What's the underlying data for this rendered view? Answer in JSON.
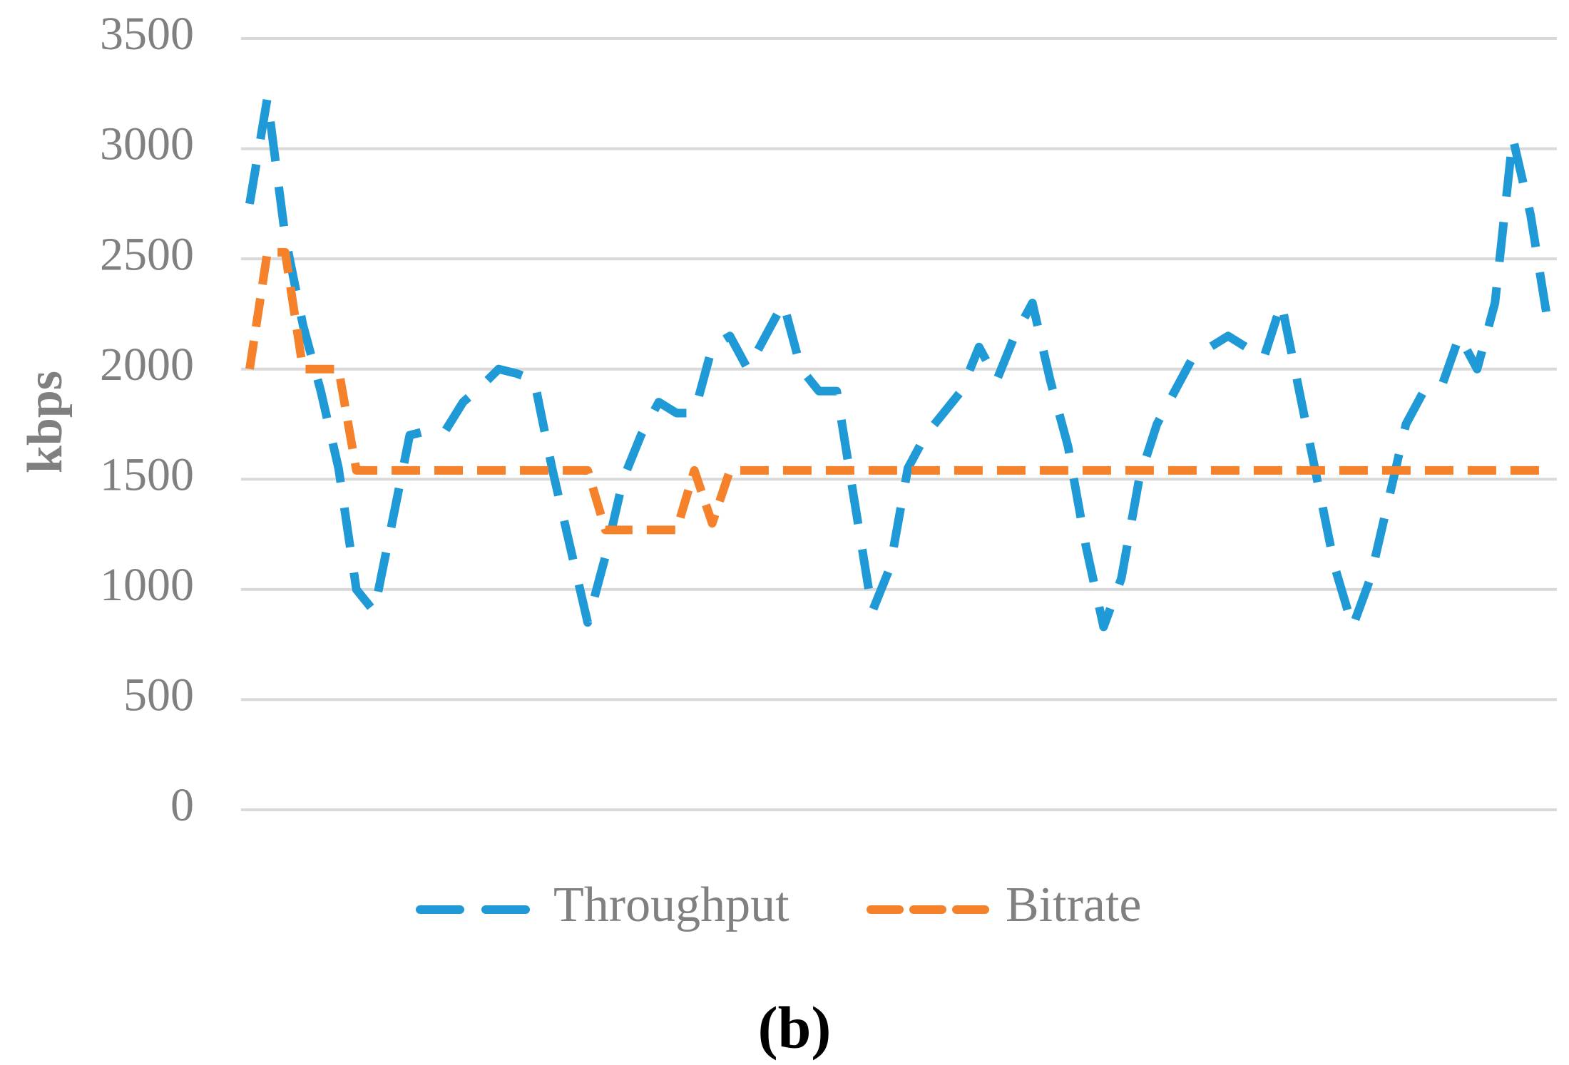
{
  "chart_data": {
    "type": "line",
    "caption": "(b)",
    "y_label": "kbps",
    "categories": [
      null,
      null,
      null,
      null,
      null,
      null,
      null,
      null,
      null,
      null,
      null,
      null,
      null,
      null,
      null,
      null,
      null,
      null,
      null,
      null,
      null,
      null,
      null,
      null,
      null,
      null,
      null,
      null,
      null,
      null,
      null,
      null,
      null,
      null,
      null,
      null,
      null,
      null,
      null,
      null,
      null,
      null,
      null,
      null,
      null,
      null,
      null,
      null,
      null,
      null,
      null,
      null,
      null,
      null,
      null,
      null,
      null,
      null,
      null,
      null,
      null,
      null,
      null,
      null,
      null,
      null,
      null,
      null,
      null,
      null,
      null,
      null,
      null,
      null
    ],
    "series": [
      {
        "name": "Throughput",
        "color": "#1f9ad6",
        "dash": "long",
        "values": [
          2750,
          3230,
          2600,
          2200,
          1900,
          1550,
          1000,
          900,
          1300,
          1700,
          1720,
          1720,
          1850,
          1920,
          2000,
          1980,
          1950,
          1550,
          1200,
          850,
          1150,
          1500,
          1700,
          1850,
          1800,
          1800,
          2100,
          2150,
          2000,
          2150,
          2300,
          2000,
          1900,
          1900,
          1400,
          900,
          1100,
          1550,
          1700,
          1800,
          1900,
          2100,
          1950,
          2150,
          2300,
          1950,
          1650,
          1200,
          830,
          1050,
          1500,
          1750,
          1900,
          2050,
          2100,
          2150,
          2100,
          2050,
          2300,
          1900,
          1500,
          1100,
          830,
          1050,
          1400,
          1750,
          1900,
          1920,
          2150,
          2000,
          2300,
          3050,
          2700,
          2200
        ]
      },
      {
        "name": "Bitrate",
        "color": "#f5812a",
        "dash": "short",
        "values": [
          2000,
          2530,
          2530,
          2000,
          2000,
          2000,
          1540,
          1540,
          1540,
          1540,
          1540,
          1540,
          1540,
          1540,
          1540,
          1540,
          1540,
          1540,
          1540,
          1540,
          1270,
          1270,
          1270,
          1270,
          1270,
          1540,
          1300,
          1540,
          1540,
          1540,
          1540,
          1540,
          1540,
          1540,
          1540,
          1540,
          1540,
          1540,
          1540,
          1540,
          1540,
          1540,
          1540,
          1540,
          1540,
          1540,
          1540,
          1540,
          1540,
          1540,
          1540,
          1540,
          1540,
          1540,
          1540,
          1540,
          1540,
          1540,
          1540,
          1540,
          1540,
          1540,
          1540,
          1540,
          1540,
          1540,
          1540,
          1540,
          1540,
          1540,
          1540,
          1540,
          1540,
          1540
        ]
      }
    ],
    "ylim": [
      0,
      3500
    ],
    "yticks": [
      0,
      500,
      1000,
      1500,
      2000,
      2500,
      3000,
      3500
    ],
    "grid": true,
    "legend": "bottom"
  }
}
